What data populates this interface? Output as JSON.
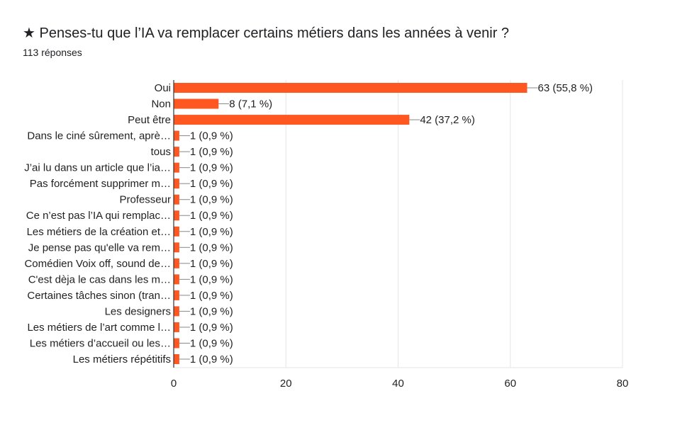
{
  "header": {
    "title": "★ Penses-tu que l’IA va remplacer certains métiers dans les années à venir ?",
    "subtitle": "113 réponses"
  },
  "chart_data": {
    "type": "bar",
    "orientation": "horizontal",
    "categories": [
      "Oui",
      "Non",
      "Peut être",
      "Dans le ciné sûrement, aprè…",
      "tous",
      "J’ai lu dans un article que l’ia…",
      "Pas forcément supprimer m…",
      "Professeur",
      "Ce n’est pas l’IA qui remplac…",
      "Les métiers de la création et…",
      "Je pense pas qu'elle va rem…",
      "Comédien Voix off, sound de…",
      "C'est dèja le cas dans les m…",
      "Certaines tâches sinon (tran…",
      "Les designers",
      "Les métiers de l’art comme l…",
      "Les métiers d’accueil ou les…",
      "Les métiers répétitifs"
    ],
    "values": [
      63,
      8,
      42,
      1,
      1,
      1,
      1,
      1,
      1,
      1,
      1,
      1,
      1,
      1,
      1,
      1,
      1,
      1
    ],
    "data_labels": [
      "63 (55,8 %)",
      "8 (7,1 %)",
      "42 (37,2 %)",
      "1 (0,9 %)",
      "1 (0,9 %)",
      "1 (0,9 %)",
      "1 (0,9 %)",
      "1 (0,9 %)",
      "1 (0,9 %)",
      "1 (0,9 %)",
      "1 (0,9 %)",
      "1 (0,9 %)",
      "1 (0,9 %)",
      "1 (0,9 %)",
      "1 (0,9 %)",
      "1 (0,9 %)",
      "1 (0,9 %)",
      "1 (0,9 %)"
    ],
    "xlim": [
      0,
      80
    ],
    "xticks": [
      "0",
      "20",
      "40",
      "60",
      "80"
    ],
    "grid": true,
    "bar_color": "#ff5722"
  }
}
